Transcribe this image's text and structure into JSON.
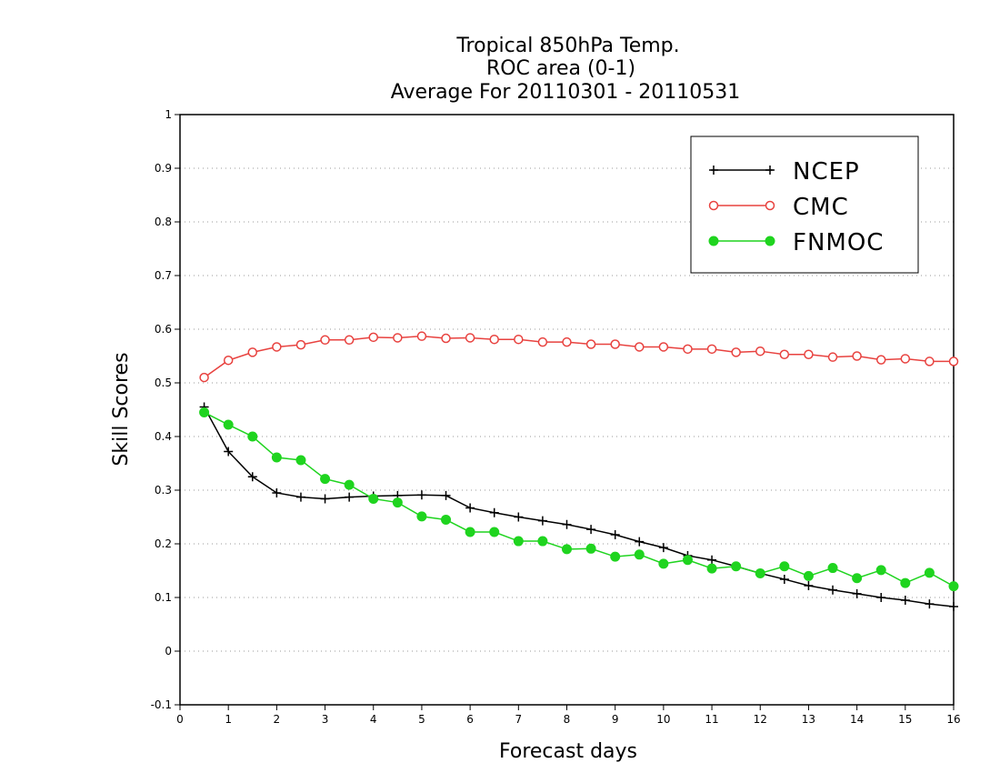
{
  "chart_data": {
    "type": "line",
    "title": [
      "Tropical 850hPa Temp.",
      "ROC area (0-1)",
      "Average For 20110301 - 20110531"
    ],
    "xlabel": "Forecast days",
    "ylabel": "Skill Scores",
    "xlim": [
      0,
      16
    ],
    "ylim": [
      -0.1,
      1
    ],
    "xticks": [
      0,
      1,
      2,
      3,
      4,
      5,
      6,
      7,
      8,
      9,
      10,
      11,
      12,
      13,
      14,
      15,
      16
    ],
    "yticks": [
      -0.1,
      0,
      0.1,
      0.2,
      0.3,
      0.4,
      0.5,
      0.6,
      0.7,
      0.8,
      0.9,
      1
    ],
    "ytick_labels": [
      "-0.1",
      "0",
      "0.1",
      "0.2",
      "0.3",
      "0.4",
      "0.5",
      "0.6",
      "0.7",
      "0.8",
      "0.9",
      "1"
    ],
    "grid": "horizontal dotted",
    "legend_position": "top-right",
    "x": [
      0.5,
      1,
      1.5,
      2,
      2.5,
      3,
      3.5,
      4,
      4.5,
      5,
      5.5,
      6,
      6.5,
      7,
      7.5,
      8,
      8.5,
      9,
      9.5,
      10,
      10.5,
      11,
      11.5,
      12,
      12.5,
      13,
      13.5,
      14,
      14.5,
      15,
      15.5,
      16
    ],
    "series": [
      {
        "name": "NCEP",
        "color": "#000000",
        "marker": "plus",
        "values": [
          0.455,
          0.372,
          0.325,
          0.295,
          0.287,
          0.284,
          0.287,
          0.289,
          0.29,
          0.291,
          0.29,
          0.267,
          0.258,
          0.25,
          0.243,
          0.236,
          0.227,
          0.217,
          0.204,
          0.193,
          0.178,
          0.17,
          0.158,
          0.145,
          0.134,
          0.122,
          0.114,
          0.107,
          0.1,
          0.095,
          0.088,
          0.083
        ]
      },
      {
        "name": "CMC",
        "color": "#e8423f",
        "marker": "open-circle",
        "values": [
          0.51,
          0.542,
          0.557,
          0.567,
          0.571,
          0.58,
          0.58,
          0.585,
          0.584,
          0.587,
          0.583,
          0.584,
          0.581,
          0.581,
          0.576,
          0.576,
          0.572,
          0.572,
          0.567,
          0.567,
          0.563,
          0.563,
          0.557,
          0.559,
          0.553,
          0.553,
          0.548,
          0.55,
          0.543,
          0.545,
          0.54,
          0.54
        ]
      },
      {
        "name": "FNMOC",
        "color": "#1fd41f",
        "marker": "filled-circle",
        "values": [
          0.445,
          0.422,
          0.4,
          0.361,
          0.356,
          0.321,
          0.31,
          0.284,
          0.277,
          0.251,
          0.245,
          0.222,
          0.222,
          0.205,
          0.205,
          0.19,
          0.191,
          0.176,
          0.18,
          0.163,
          0.17,
          0.154,
          0.158,
          0.145,
          0.158,
          0.14,
          0.155,
          0.136,
          0.151,
          0.127,
          0.146,
          0.121
        ]
      }
    ]
  }
}
